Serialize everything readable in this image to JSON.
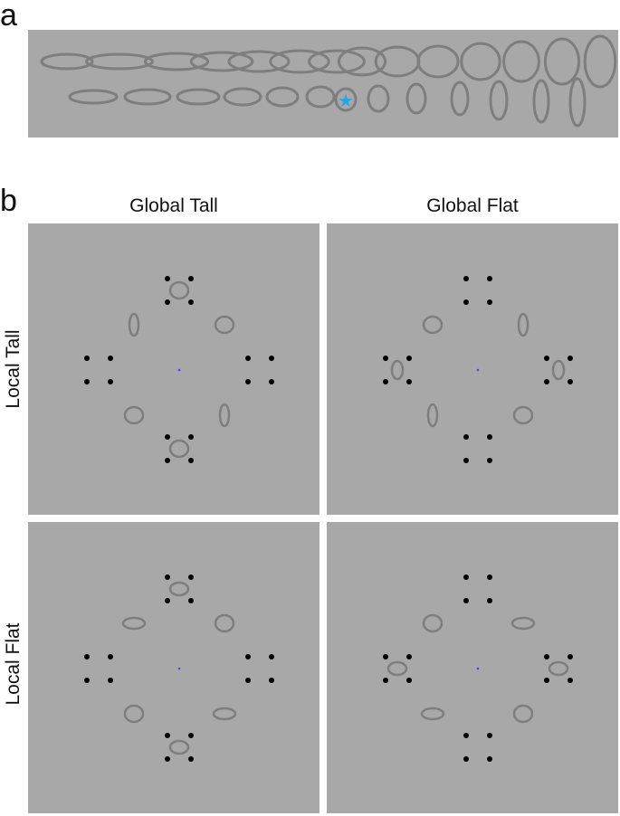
{
  "panel_a": {
    "label": "a"
  },
  "panel_b": {
    "label": "b",
    "column_labels": [
      "Global Tall",
      "Global Flat"
    ],
    "row_labels": [
      "Local Tall",
      "Local Flat"
    ]
  },
  "colors": {
    "panel_background": "#a8a8a8",
    "shape_stroke": "#7e7e7e",
    "dot": "#000000",
    "star": "#27a6e6",
    "fixation": "#4a4ae0"
  },
  "icons": {
    "target_marker": "star-icon"
  }
}
